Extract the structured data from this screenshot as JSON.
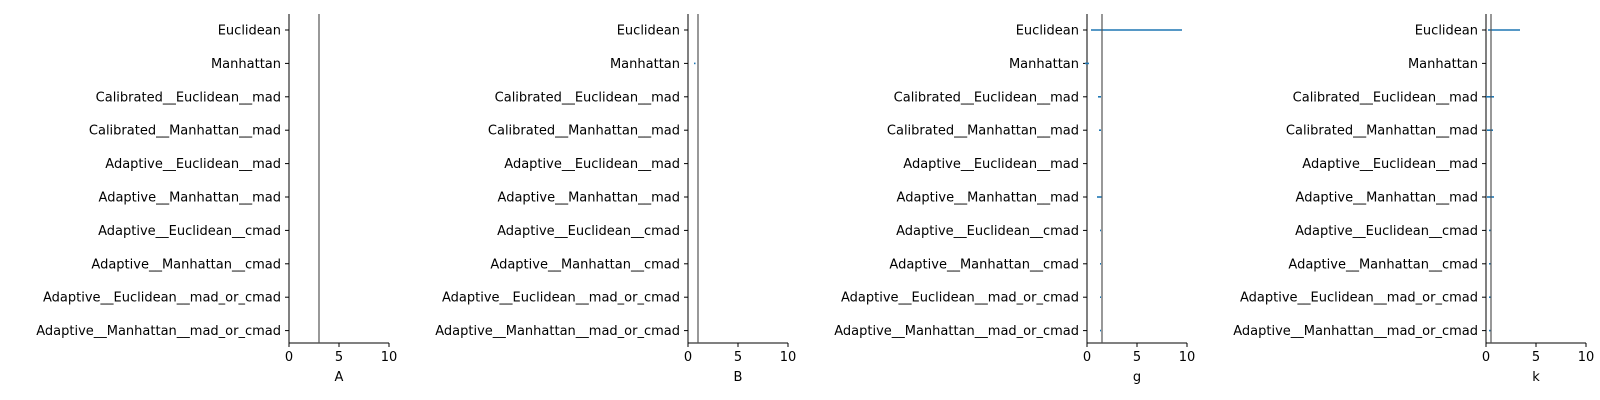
{
  "chart_data": [
    {
      "type": "errorbar",
      "xlabel": "A",
      "xlim": [
        0,
        10
      ],
      "xticks": [
        0,
        5,
        10
      ],
      "reference_line": 3,
      "categories": [
        "Euclidean",
        "Manhattan",
        "Calibrated__Euclidean__mad",
        "Calibrated__Manhattan__mad",
        "Adaptive__Euclidean__mad",
        "Adaptive__Manhattan__mad",
        "Adaptive__Euclidean__cmad",
        "Adaptive__Manhattan__cmad",
        "Adaptive__Euclidean__mad_or_cmad",
        "Adaptive__Manhattan__mad_or_cmad"
      ],
      "intervals": [
        null,
        null,
        null,
        null,
        null,
        null,
        null,
        null,
        null,
        null
      ]
    },
    {
      "type": "errorbar",
      "xlabel": "B",
      "xlim": [
        0,
        10
      ],
      "xticks": [
        0,
        5,
        10
      ],
      "reference_line": 1,
      "categories": [
        "Euclidean",
        "Manhattan",
        "Calibrated__Euclidean__mad",
        "Calibrated__Manhattan__mad",
        "Adaptive__Euclidean__mad",
        "Adaptive__Manhattan__mad",
        "Adaptive__Euclidean__cmad",
        "Adaptive__Manhattan__cmad",
        "Adaptive__Euclidean__mad_or_cmad",
        "Adaptive__Manhattan__mad_or_cmad"
      ],
      "intervals": [
        null,
        [
          0.6,
          0.75
        ],
        null,
        null,
        null,
        null,
        null,
        null,
        null,
        null
      ]
    },
    {
      "type": "errorbar",
      "xlabel": "g",
      "xlim": [
        0,
        10
      ],
      "xticks": [
        0,
        5,
        10
      ],
      "reference_line": 1.5,
      "categories": [
        "Euclidean",
        "Manhattan",
        "Calibrated__Euclidean__mad",
        "Calibrated__Manhattan__mad",
        "Adaptive__Euclidean__mad",
        "Adaptive__Manhattan__mad",
        "Adaptive__Euclidean__cmad",
        "Adaptive__Manhattan__cmad",
        "Adaptive__Euclidean__mad_or_cmad",
        "Adaptive__Manhattan__mad_or_cmad"
      ],
      "intervals": [
        [
          0.4,
          9.5
        ],
        [
          -0.2,
          0.2
        ],
        [
          1.1,
          1.4
        ],
        [
          1.2,
          1.4
        ],
        null,
        [
          1.0,
          1.5
        ],
        [
          1.3,
          1.4
        ],
        [
          1.3,
          1.4
        ],
        [
          1.3,
          1.4
        ],
        [
          1.3,
          1.4
        ]
      ]
    },
    {
      "type": "errorbar",
      "xlabel": "k",
      "xlim": [
        0,
        10
      ],
      "xticks": [
        0,
        5,
        10
      ],
      "reference_line": 0.5,
      "categories": [
        "Euclidean",
        "Manhattan",
        "Calibrated__Euclidean__mad",
        "Calibrated__Manhattan__mad",
        "Adaptive__Euclidean__mad",
        "Adaptive__Manhattan__mad",
        "Adaptive__Euclidean__cmad",
        "Adaptive__Manhattan__cmad",
        "Adaptive__Euclidean__mad_or_cmad",
        "Adaptive__Manhattan__mad_or_cmad"
      ],
      "intervals": [
        [
          0.2,
          3.4
        ],
        null,
        [
          0.0,
          0.8
        ],
        [
          0.1,
          0.7
        ],
        null,
        [
          0.1,
          0.8
        ],
        [
          0.3,
          0.5
        ],
        [
          0.3,
          0.5
        ],
        [
          0.3,
          0.5
        ],
        [
          0.3,
          0.5
        ]
      ]
    }
  ],
  "colors": {
    "interval": "#1f77b4",
    "reference_line": "#555555",
    "axis": "#000000"
  }
}
